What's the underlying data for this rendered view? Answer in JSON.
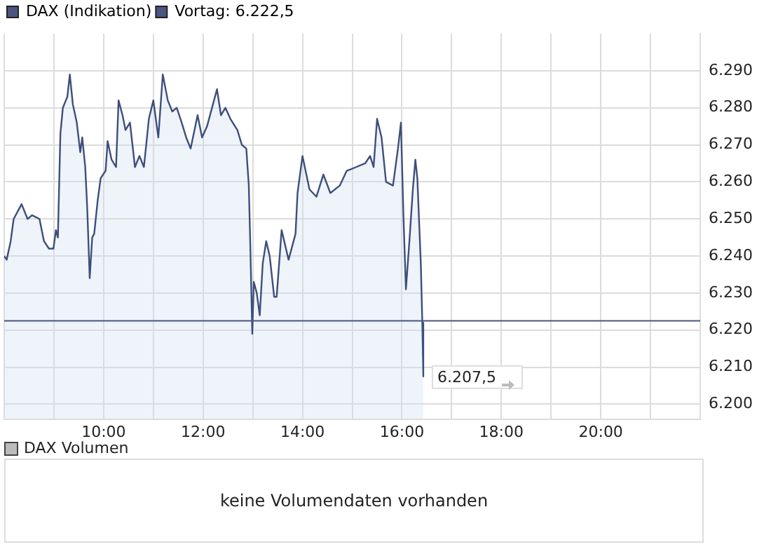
{
  "chart_data": [
    {
      "type": "area",
      "x": [
        8.0,
        8.05,
        8.13,
        8.19,
        8.31,
        8.35,
        8.47,
        8.56,
        8.71,
        8.8,
        8.9,
        8.99,
        9.04,
        9.08,
        9.13,
        9.18,
        9.27,
        9.32,
        9.38,
        9.46,
        9.53,
        9.57,
        9.63,
        9.67,
        9.72,
        9.77,
        9.81,
        9.88,
        9.94,
        10.04,
        10.08,
        10.16,
        10.25,
        10.3,
        10.38,
        10.44,
        10.53,
        10.63,
        10.72,
        10.81,
        10.91,
        11.0,
        11.1,
        11.19,
        11.29,
        11.38,
        11.47,
        11.57,
        11.66,
        11.75,
        11.89,
        11.98,
        12.08,
        12.22,
        12.28,
        12.36,
        12.45,
        12.55,
        12.69,
        12.78,
        12.87,
        12.92,
        12.95,
        12.99,
        13.02,
        13.08,
        13.14,
        13.2,
        13.27,
        13.34,
        13.43,
        13.48,
        13.58,
        13.72,
        13.86,
        13.9,
        14.0,
        14.14,
        14.28,
        14.42,
        14.56,
        14.75,
        14.89,
        15.08,
        15.26,
        15.36,
        15.43,
        15.5,
        15.59,
        15.68,
        15.82,
        15.92,
        15.98,
        16.03,
        16.08,
        16.15,
        16.22,
        16.27,
        16.31,
        16.38,
        16.41,
        16.43
      ],
      "series": [
        {
          "name": "DAX (Indikation)",
          "color": "#3d4f7c",
          "values": [
            6240,
            6239,
            6244,
            6250,
            6253,
            6254,
            6250,
            6251,
            6250,
            6244,
            6242,
            6242,
            6247,
            6245,
            6273,
            6280,
            6283,
            6289,
            6281,
            6276,
            6268,
            6272,
            6264,
            6253,
            6234,
            6245,
            6246,
            6255,
            6261,
            6263,
            6271,
            6266,
            6264,
            6282,
            6278,
            6274,
            6276,
            6264,
            6267,
            6264,
            6277,
            6282,
            6272,
            6289,
            6282,
            6279,
            6280,
            6276,
            6272,
            6269,
            6278,
            6272,
            6275,
            6282,
            6285,
            6278,
            6280,
            6277,
            6274,
            6270,
            6269,
            6259,
            6243,
            6219,
            6233,
            6230,
            6224,
            6238,
            6244,
            6240,
            6229,
            6229,
            6247,
            6239,
            6246,
            6257,
            6267,
            6258,
            6256,
            6262,
            6257,
            6259,
            6263,
            6264,
            6265,
            6267,
            6264,
            6277,
            6272,
            6260,
            6259,
            6269,
            6276,
            6251,
            6231,
            6244,
            6258,
            6266,
            6261,
            6238,
            6222,
            6207.5
          ]
        }
      ],
      "xlim": [
        8,
        22
      ],
      "xticks": [
        {
          "value": 8,
          "label": null
        },
        {
          "value": 9,
          "label": null
        },
        {
          "value": 10,
          "label": "10:00"
        },
        {
          "value": 11,
          "label": null
        },
        {
          "value": 12,
          "label": "12:00"
        },
        {
          "value": 13,
          "label": null
        },
        {
          "value": 14,
          "label": "14:00"
        },
        {
          "value": 15,
          "label": null
        },
        {
          "value": 16,
          "label": "16:00"
        },
        {
          "value": 17,
          "label": null
        },
        {
          "value": 18,
          "label": "18:00"
        },
        {
          "value": 19,
          "label": null
        },
        {
          "value": 20,
          "label": "20:00"
        },
        {
          "value": 21,
          "label": null
        },
        {
          "value": 22,
          "label": null
        }
      ],
      "ylim": [
        6196,
        6300
      ],
      "yticks": [
        {
          "value": 6200,
          "label": "6.200"
        },
        {
          "value": 6210,
          "label": "6.210"
        },
        {
          "value": 6220,
          "label": "6.220"
        },
        {
          "value": 6230,
          "label": "6.230"
        },
        {
          "value": 6240,
          "label": "6.240"
        },
        {
          "value": 6250,
          "label": "6.250"
        },
        {
          "value": 6260,
          "label": "6.260"
        },
        {
          "value": 6270,
          "label": "6.270"
        },
        {
          "value": 6280,
          "label": "6.280"
        },
        {
          "value": 6290,
          "label": "6.290"
        }
      ],
      "ref_lines": [
        {
          "axis": "y",
          "value": 6222.5,
          "label": "Vortag: 6.222,5",
          "color": "#4a5580"
        }
      ],
      "annotations": [
        {
          "text": "6.207,5",
          "x": 16.43,
          "y": 6207.5
        }
      ],
      "grid": true,
      "legend": "top left",
      "marker": "none",
      "line_style": "solid"
    },
    {
      "type": "other",
      "title": "DAX Volumen",
      "annotations": [
        "keine Volumendaten vorhanden"
      ]
    }
  ]
}
